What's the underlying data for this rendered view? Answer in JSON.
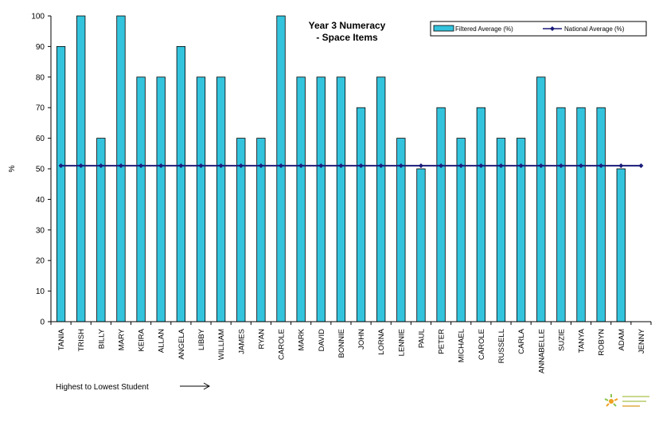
{
  "chart_data": {
    "type": "bar",
    "title": "Year 3 Numeracy - Space Items",
    "title_lines": [
      "Year 3 Numeracy",
      "- Space Items"
    ],
    "ylabel": "%",
    "xlabel": "Highest to Lowest Student",
    "ylim": [
      0,
      100
    ],
    "yticks": [
      0,
      10,
      20,
      30,
      40,
      50,
      60,
      70,
      80,
      90,
      100
    ],
    "grid": false,
    "legend_position": "top-right",
    "categories": [
      "TANIA",
      "TRISH",
      "BILLY",
      "MARY",
      "KEIRA",
      "ALLAN",
      "ANGELA",
      "LIBBY",
      "WILLIAM",
      "JAMES",
      "RYAN",
      "CAROLE",
      "MARK",
      "DAVID",
      "BONNIE",
      "JOHN",
      "LORNA",
      "LENNIE",
      "PAUL",
      "PETER",
      "MICHAEL",
      "CAROLE",
      "RUSSELL",
      "CARLA",
      "ANNABELLE",
      "SUZIE",
      "TANYA",
      "ROBYN",
      "ADAM",
      "JENNY"
    ],
    "series": [
      {
        "name": "Filtered Average (%)",
        "type": "bar",
        "color": "#33c3dd",
        "values": [
          90,
          100,
          60,
          100,
          80,
          80,
          90,
          80,
          80,
          60,
          60,
          100,
          80,
          80,
          80,
          70,
          80,
          60,
          50,
          70,
          60,
          70,
          60,
          60,
          80,
          70,
          70,
          70,
          50,
          null
        ]
      },
      {
        "name": "National Average (%)",
        "type": "line",
        "color": "#1a1a7a",
        "values": [
          51,
          51,
          51,
          51,
          51,
          51,
          51,
          51,
          51,
          51,
          51,
          51,
          51,
          51,
          51,
          51,
          51,
          51,
          51,
          51,
          51,
          51,
          51,
          51,
          51,
          51,
          51,
          51,
          51,
          51
        ]
      }
    ]
  }
}
